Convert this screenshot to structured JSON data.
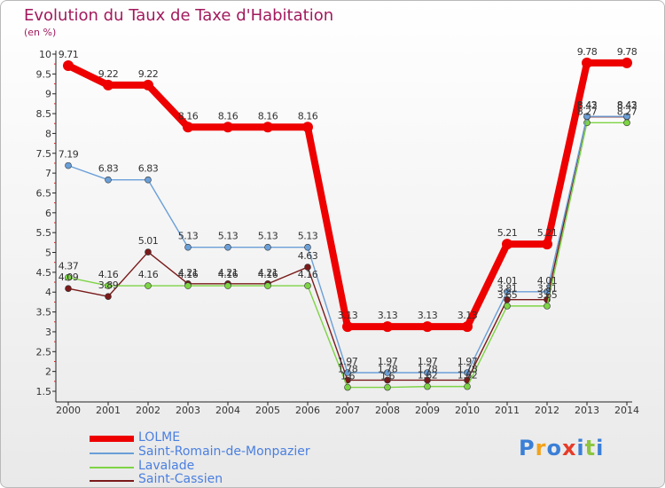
{
  "title": "Evolution du Taux de Taxe d'Habitation",
  "unit_label": "(en %)",
  "logo": {
    "letters": [
      "P",
      "r",
      "o",
      "x",
      "i",
      "t",
      "i"
    ],
    "colors": [
      "#3b7fd6",
      "#f2a31b",
      "#3b7fd6",
      "#e63c2a",
      "#3b7fd6",
      "#8cc63f",
      "#3b7fd6"
    ]
  },
  "chart_data": {
    "type": "line",
    "title": "Evolution du Taux de Taxe d'Habitation",
    "ylabel": "(en %)",
    "xlabel": "",
    "ylim": [
      1.5,
      10
    ],
    "yticks": [
      "1.5",
      "2",
      "2.5",
      "3",
      "3.5",
      "4",
      "4.5",
      "5",
      "5.5",
      "6",
      "6.5",
      "7",
      "7.5",
      "8",
      "8.5",
      "9",
      "9.5",
      "10"
    ],
    "grid": false,
    "legend_position": "bottom-left",
    "categories": [
      "2000",
      "2001",
      "2002",
      "2003",
      "2004",
      "2005",
      "2006",
      "2007",
      "2008",
      "2009",
      "2010",
      "2011",
      "2012",
      "2013",
      "2014"
    ],
    "series": [
      {
        "name": "LOLME",
        "color": "#ee0000",
        "values": [
          9.71,
          9.22,
          9.22,
          8.16,
          8.16,
          8.16,
          8.16,
          3.13,
          3.13,
          3.13,
          3.13,
          5.21,
          5.21,
          9.78,
          9.78
        ],
        "labels": [
          "9.71",
          "9.22",
          "9.22",
          "8.16",
          "8.16",
          "8.16",
          "8.16",
          "3.13",
          "3.13",
          "3.13",
          "3.13",
          "5.21",
          "5.21",
          "9.78",
          "9.78"
        ]
      },
      {
        "name": "Saint-Romain-de-Monpazier",
        "color": "#6a9fd8",
        "values": [
          7.19,
          6.83,
          6.83,
          5.13,
          5.13,
          5.13,
          5.13,
          1.97,
          1.97,
          1.97,
          1.97,
          4.01,
          4.01,
          8.43,
          8.43
        ],
        "labels": [
          "7.19",
          "6.83",
          "6.83",
          "5.13",
          "5.13",
          "5.13",
          "5.13",
          "1.97",
          "1.97",
          "1.97",
          "1.97",
          "4.01",
          "4.01",
          "8.43",
          "8.43"
        ]
      },
      {
        "name": "Lavalade",
        "color": "#7dd444",
        "values": [
          4.37,
          4.16,
          4.16,
          4.16,
          4.16,
          4.16,
          4.16,
          1.6,
          1.6,
          1.62,
          1.62,
          3.65,
          3.65,
          8.27,
          8.27
        ],
        "labels": [
          "4.37",
          "4.16",
          "4.16",
          "4.16",
          "4.16",
          "4.16",
          "4.16",
          "1.6",
          "1.6",
          "1.62",
          "1.62",
          "3.65",
          "3.65",
          "8.27",
          "8.27"
        ]
      },
      {
        "name": "Saint-Cassien",
        "color": "#7a1a1a",
        "values": [
          4.09,
          3.89,
          5.01,
          4.21,
          4.21,
          4.21,
          4.63,
          1.78,
          1.78,
          1.78,
          1.78,
          3.81,
          3.81,
          8.42,
          8.42
        ],
        "labels": [
          "4.09",
          "3.89",
          "5.01",
          "4.21",
          "4.21",
          "4.21",
          "4.63",
          "1.78",
          "1.78",
          "1.78",
          "1.78",
          "3.81",
          "3.81",
          "8.42",
          "8.42"
        ]
      }
    ]
  }
}
